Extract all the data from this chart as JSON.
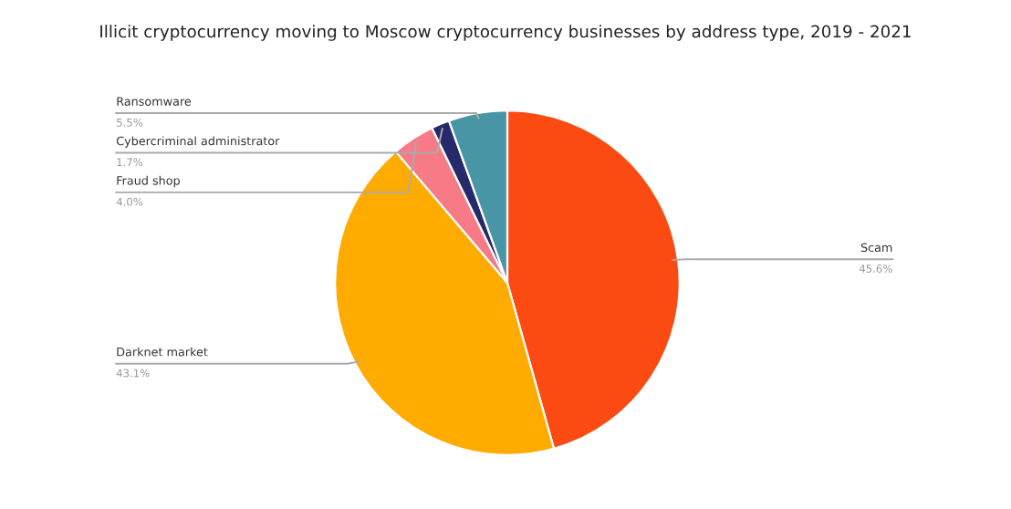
{
  "chart_data": {
    "type": "pie",
    "title": "Illicit cryptocurrency moving to Moscow cryptocurrency businesses by address type, 2019 - 2021",
    "categories": [
      "Scam",
      "Darknet market",
      "Fraud shop",
      "Cybercriminal administrator",
      "Ransomware"
    ],
    "values": [
      45.6,
      43.1,
      4.0,
      1.7,
      5.5
    ],
    "value_labels": [
      "45.6%",
      "43.1%",
      "4.0%",
      "1.7%",
      "5.5%"
    ],
    "colors": [
      "#fb4a12",
      "#ffab00",
      "#f77b86",
      "#262a6b",
      "#4895a6"
    ]
  }
}
